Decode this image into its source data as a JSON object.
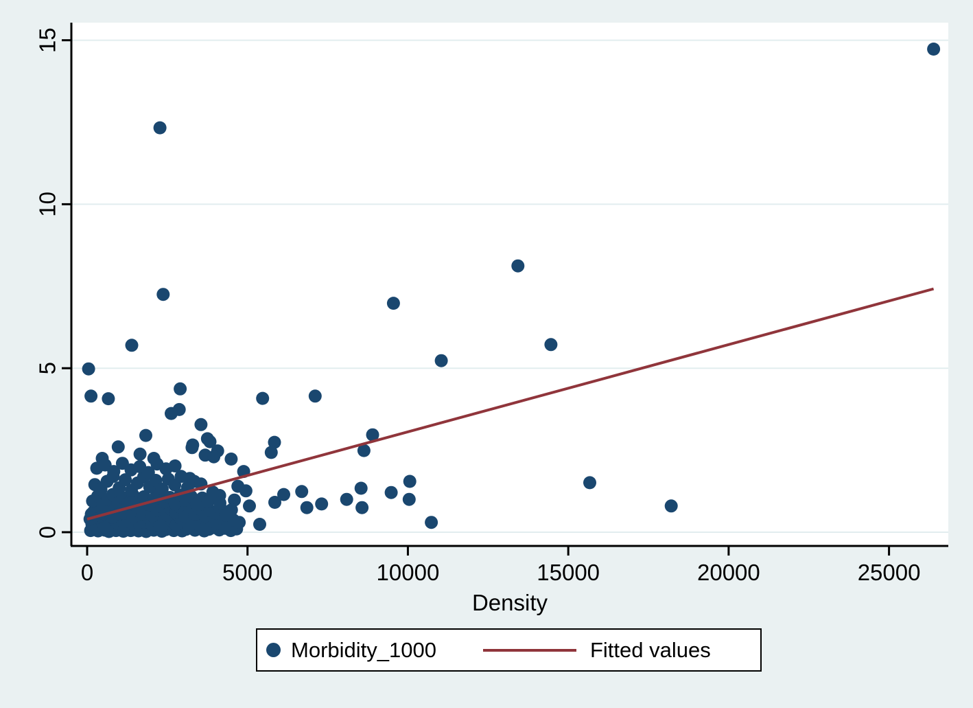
{
  "figure": {
    "background_color": "#eaf1f2",
    "plot_background": "#ffffff",
    "grid_color": "#e2edef",
    "axis_color": "#000000",
    "text_color": "#000000"
  },
  "chart_data": {
    "type": "scatter",
    "title": "",
    "xlabel": "Density",
    "ylabel": "",
    "x_ticks": [
      0,
      5000,
      10000,
      15000,
      20000,
      25000
    ],
    "y_ticks": [
      0,
      5,
      10,
      15
    ],
    "xlim": [
      0,
      26900
    ],
    "ylim": [
      0,
      15.5
    ],
    "grid": "horizontal-only",
    "legend_position": "bottom-center",
    "series": [
      {
        "name": "Morbidity_1000",
        "type": "scatter",
        "color": "#1a476f",
        "marker": "filled-circle",
        "points": [
          [
            26390,
            14.73
          ],
          [
            2270,
            12.33
          ],
          [
            13430,
            8.12
          ],
          [
            2370,
            7.25
          ],
          [
            9550,
            6.98
          ],
          [
            14460,
            5.72
          ],
          [
            1390,
            5.7
          ],
          [
            11040,
            5.23
          ],
          [
            45,
            4.98
          ],
          [
            120,
            4.15
          ],
          [
            660,
            4.07
          ],
          [
            2900,
            4.37
          ],
          [
            5470,
            4.08
          ],
          [
            7110,
            4.15
          ],
          [
            2870,
            3.74
          ],
          [
            2620,
            3.62
          ],
          [
            3550,
            3.28
          ],
          [
            8900,
            2.97
          ],
          [
            3750,
            2.85
          ],
          [
            1830,
            2.95
          ],
          [
            3830,
            2.76
          ],
          [
            970,
            2.6
          ],
          [
            3290,
            2.66
          ],
          [
            4070,
            2.48
          ],
          [
            8630,
            2.49
          ],
          [
            5840,
            2.74
          ],
          [
            5740,
            2.43
          ],
          [
            1650,
            2.38
          ],
          [
            2080,
            2.25
          ],
          [
            470,
            2.25
          ],
          [
            3680,
            2.35
          ],
          [
            3270,
            2.58
          ],
          [
            3950,
            2.3
          ],
          [
            4490,
            2.23
          ],
          [
            4880,
            1.85
          ],
          [
            3200,
            1.64
          ],
          [
            4700,
            1.4
          ],
          [
            3920,
            1.22
          ],
          [
            4130,
            1.12
          ],
          [
            4950,
            1.26
          ],
          [
            4590,
            0.98
          ],
          [
            5060,
            0.8
          ],
          [
            6130,
            1.15
          ],
          [
            5850,
            0.91
          ],
          [
            5380,
            0.24
          ],
          [
            6690,
            1.24
          ],
          [
            6850,
            0.75
          ],
          [
            7310,
            0.86
          ],
          [
            8090,
            1.0
          ],
          [
            8540,
            1.34
          ],
          [
            8570,
            0.75
          ],
          [
            9480,
            1.21
          ],
          [
            10060,
            1.55
          ],
          [
            10040,
            1.0
          ],
          [
            10730,
            0.3
          ],
          [
            15670,
            1.51
          ],
          [
            18210,
            0.8
          ],
          [
            110,
            0.05
          ],
          [
            230,
            0.1
          ],
          [
            340,
            0.04
          ],
          [
            450,
            0.12
          ],
          [
            560,
            0.06
          ],
          [
            680,
            0.02
          ],
          [
            790,
            0.11
          ],
          [
            900,
            0.05
          ],
          [
            1010,
            0.13
          ],
          [
            1130,
            0.03
          ],
          [
            1240,
            0.08
          ],
          [
            1360,
            0.05
          ],
          [
            1480,
            0.12
          ],
          [
            1600,
            0.04
          ],
          [
            1720,
            0.09
          ],
          [
            1840,
            0.02
          ],
          [
            1960,
            0.12
          ],
          [
            2080,
            0.06
          ],
          [
            2200,
            0.1
          ],
          [
            2330,
            0.03
          ],
          [
            2450,
            0.08
          ],
          [
            2570,
            0.13
          ],
          [
            2700,
            0.05
          ],
          [
            2830,
            0.1
          ],
          [
            2960,
            0.04
          ],
          [
            3090,
            0.09
          ],
          [
            3220,
            0.14
          ],
          [
            3360,
            0.06
          ],
          [
            3500,
            0.11
          ],
          [
            3650,
            0.04
          ],
          [
            3800,
            0.09
          ],
          [
            3960,
            0.14
          ],
          [
            4120,
            0.07
          ],
          [
            4300,
            0.12
          ],
          [
            4480,
            0.05
          ],
          [
            4660,
            0.1
          ],
          [
            150,
            0.25
          ],
          [
            260,
            0.35
          ],
          [
            380,
            0.18
          ],
          [
            490,
            0.3
          ],
          [
            600,
            0.42
          ],
          [
            720,
            0.22
          ],
          [
            830,
            0.38
          ],
          [
            950,
            0.27
          ],
          [
            1060,
            0.44
          ],
          [
            1180,
            0.2
          ],
          [
            1290,
            0.33
          ],
          [
            1410,
            0.25
          ],
          [
            1530,
            0.41
          ],
          [
            1650,
            0.18
          ],
          [
            1770,
            0.3
          ],
          [
            1890,
            0.44
          ],
          [
            2010,
            0.24
          ],
          [
            2140,
            0.36
          ],
          [
            2260,
            0.19
          ],
          [
            2390,
            0.42
          ],
          [
            2510,
            0.28
          ],
          [
            2640,
            0.35
          ],
          [
            2770,
            0.21
          ],
          [
            2900,
            0.44
          ],
          [
            3030,
            0.3
          ],
          [
            3170,
            0.17
          ],
          [
            3300,
            0.39
          ],
          [
            3440,
            0.26
          ],
          [
            3580,
            0.43
          ],
          [
            3730,
            0.2
          ],
          [
            3880,
            0.34
          ],
          [
            4040,
            0.28
          ],
          [
            4200,
            0.41
          ],
          [
            4380,
            0.23
          ],
          [
            4560,
            0.37
          ],
          [
            4740,
            0.3
          ],
          [
            90,
            0.4
          ],
          [
            320,
            0.45
          ],
          [
            540,
            0.16
          ],
          [
            760,
            0.45
          ],
          [
            130,
            0.55
          ],
          [
            280,
            0.7
          ],
          [
            420,
            0.5
          ],
          [
            570,
            0.63
          ],
          [
            710,
            0.77
          ],
          [
            860,
            0.52
          ],
          [
            1000,
            0.68
          ],
          [
            1150,
            0.58
          ],
          [
            1300,
            0.74
          ],
          [
            1440,
            0.48
          ],
          [
            1590,
            0.65
          ],
          [
            1740,
            0.55
          ],
          [
            1880,
            0.72
          ],
          [
            2030,
            0.5
          ],
          [
            2180,
            0.67
          ],
          [
            2320,
            0.78
          ],
          [
            2470,
            0.53
          ],
          [
            2620,
            0.7
          ],
          [
            2760,
            0.6
          ],
          [
            2910,
            0.76
          ],
          [
            3060,
            0.47
          ],
          [
            3210,
            0.64
          ],
          [
            3360,
            0.55
          ],
          [
            3510,
            0.71
          ],
          [
            3670,
            0.49
          ],
          [
            3830,
            0.66
          ],
          [
            3990,
            0.58
          ],
          [
            4150,
            0.75
          ],
          [
            4320,
            0.52
          ],
          [
            4500,
            0.68
          ],
          [
            200,
            0.62
          ],
          [
            350,
            0.78
          ],
          [
            500,
            0.57
          ],
          [
            650,
            0.73
          ],
          [
            800,
            0.47
          ],
          [
            170,
            0.95
          ],
          [
            330,
            1.1
          ],
          [
            480,
            0.85
          ],
          [
            640,
            1.0
          ],
          [
            800,
            1.15
          ],
          [
            960,
            0.9
          ],
          [
            1120,
            1.05
          ],
          [
            1280,
            0.88
          ],
          [
            1440,
            1.12
          ],
          [
            1610,
            0.96
          ],
          [
            1770,
            1.08
          ],
          [
            1930,
            0.84
          ],
          [
            2090,
            1.02
          ],
          [
            2250,
            1.17
          ],
          [
            2410,
            0.92
          ],
          [
            2580,
            1.06
          ],
          [
            2740,
            0.87
          ],
          [
            2900,
            1.13
          ],
          [
            3070,
            0.98
          ],
          [
            3240,
            1.09
          ],
          [
            3410,
            0.86
          ],
          [
            3590,
            1.04
          ],
          [
            3770,
            0.94
          ],
          [
            3950,
            1.16
          ],
          [
            4140,
            0.89
          ],
          [
            240,
            1.45
          ],
          [
            430,
            1.3
          ],
          [
            620,
            1.55
          ],
          [
            810,
            1.7
          ],
          [
            1000,
            1.35
          ],
          [
            1190,
            1.6
          ],
          [
            1380,
            1.28
          ],
          [
            1570,
            1.5
          ],
          [
            1760,
            1.68
          ],
          [
            1950,
            1.38
          ],
          [
            2140,
            1.58
          ],
          [
            2340,
            1.32
          ],
          [
            2530,
            1.62
          ],
          [
            2730,
            1.44
          ],
          [
            2930,
            1.7
          ],
          [
            3130,
            1.36
          ],
          [
            3340,
            1.55
          ],
          [
            3550,
            1.47
          ],
          [
            300,
            1.95
          ],
          [
            560,
            2.05
          ],
          [
            830,
            1.85
          ],
          [
            1100,
            2.1
          ],
          [
            1370,
            1.9
          ],
          [
            1640,
            2.0
          ],
          [
            1910,
            1.82
          ],
          [
            2180,
            2.08
          ],
          [
            2460,
            1.93
          ],
          [
            2740,
            2.02
          ]
        ]
      },
      {
        "name": "Fitted values",
        "type": "line",
        "color": "#90353b",
        "points": [
          [
            0,
            0.4
          ],
          [
            26390,
            7.42
          ]
        ]
      }
    ]
  }
}
